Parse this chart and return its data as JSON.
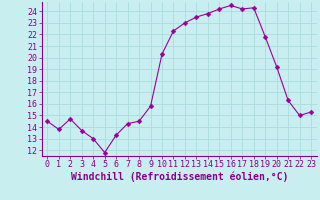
{
  "x": [
    0,
    1,
    2,
    3,
    4,
    5,
    6,
    7,
    8,
    9,
    10,
    11,
    12,
    13,
    14,
    15,
    16,
    17,
    18,
    19,
    20,
    21,
    22,
    23
  ],
  "y": [
    14.5,
    13.8,
    14.7,
    13.7,
    13.0,
    11.8,
    13.3,
    14.3,
    14.5,
    15.8,
    20.3,
    22.3,
    23.0,
    23.5,
    23.8,
    24.2,
    24.5,
    24.2,
    24.3,
    21.8,
    19.2,
    16.3,
    15.0,
    15.3
  ],
  "line_color": "#990099",
  "marker": "D",
  "marker_size": 2.5,
  "bg_color": "#c8eef0",
  "grid_color": "#aadddd",
  "ylabel_ticks": [
    12,
    13,
    14,
    15,
    16,
    17,
    18,
    19,
    20,
    21,
    22,
    23,
    24
  ],
  "ylim": [
    11.5,
    24.8
  ],
  "xlim": [
    -0.5,
    23.5
  ],
  "xlabel": "Windchill (Refroidissement éolien,°C)",
  "tick_fontsize": 6,
  "xlabel_fontsize": 7,
  "x_tick_labels": [
    "0",
    "1",
    "2",
    "3",
    "4",
    "5",
    "6",
    "7",
    "8",
    "9",
    "10",
    "11",
    "12",
    "13",
    "14",
    "15",
    "16",
    "17",
    "18",
    "19",
    "20",
    "21",
    "22",
    "23"
  ]
}
